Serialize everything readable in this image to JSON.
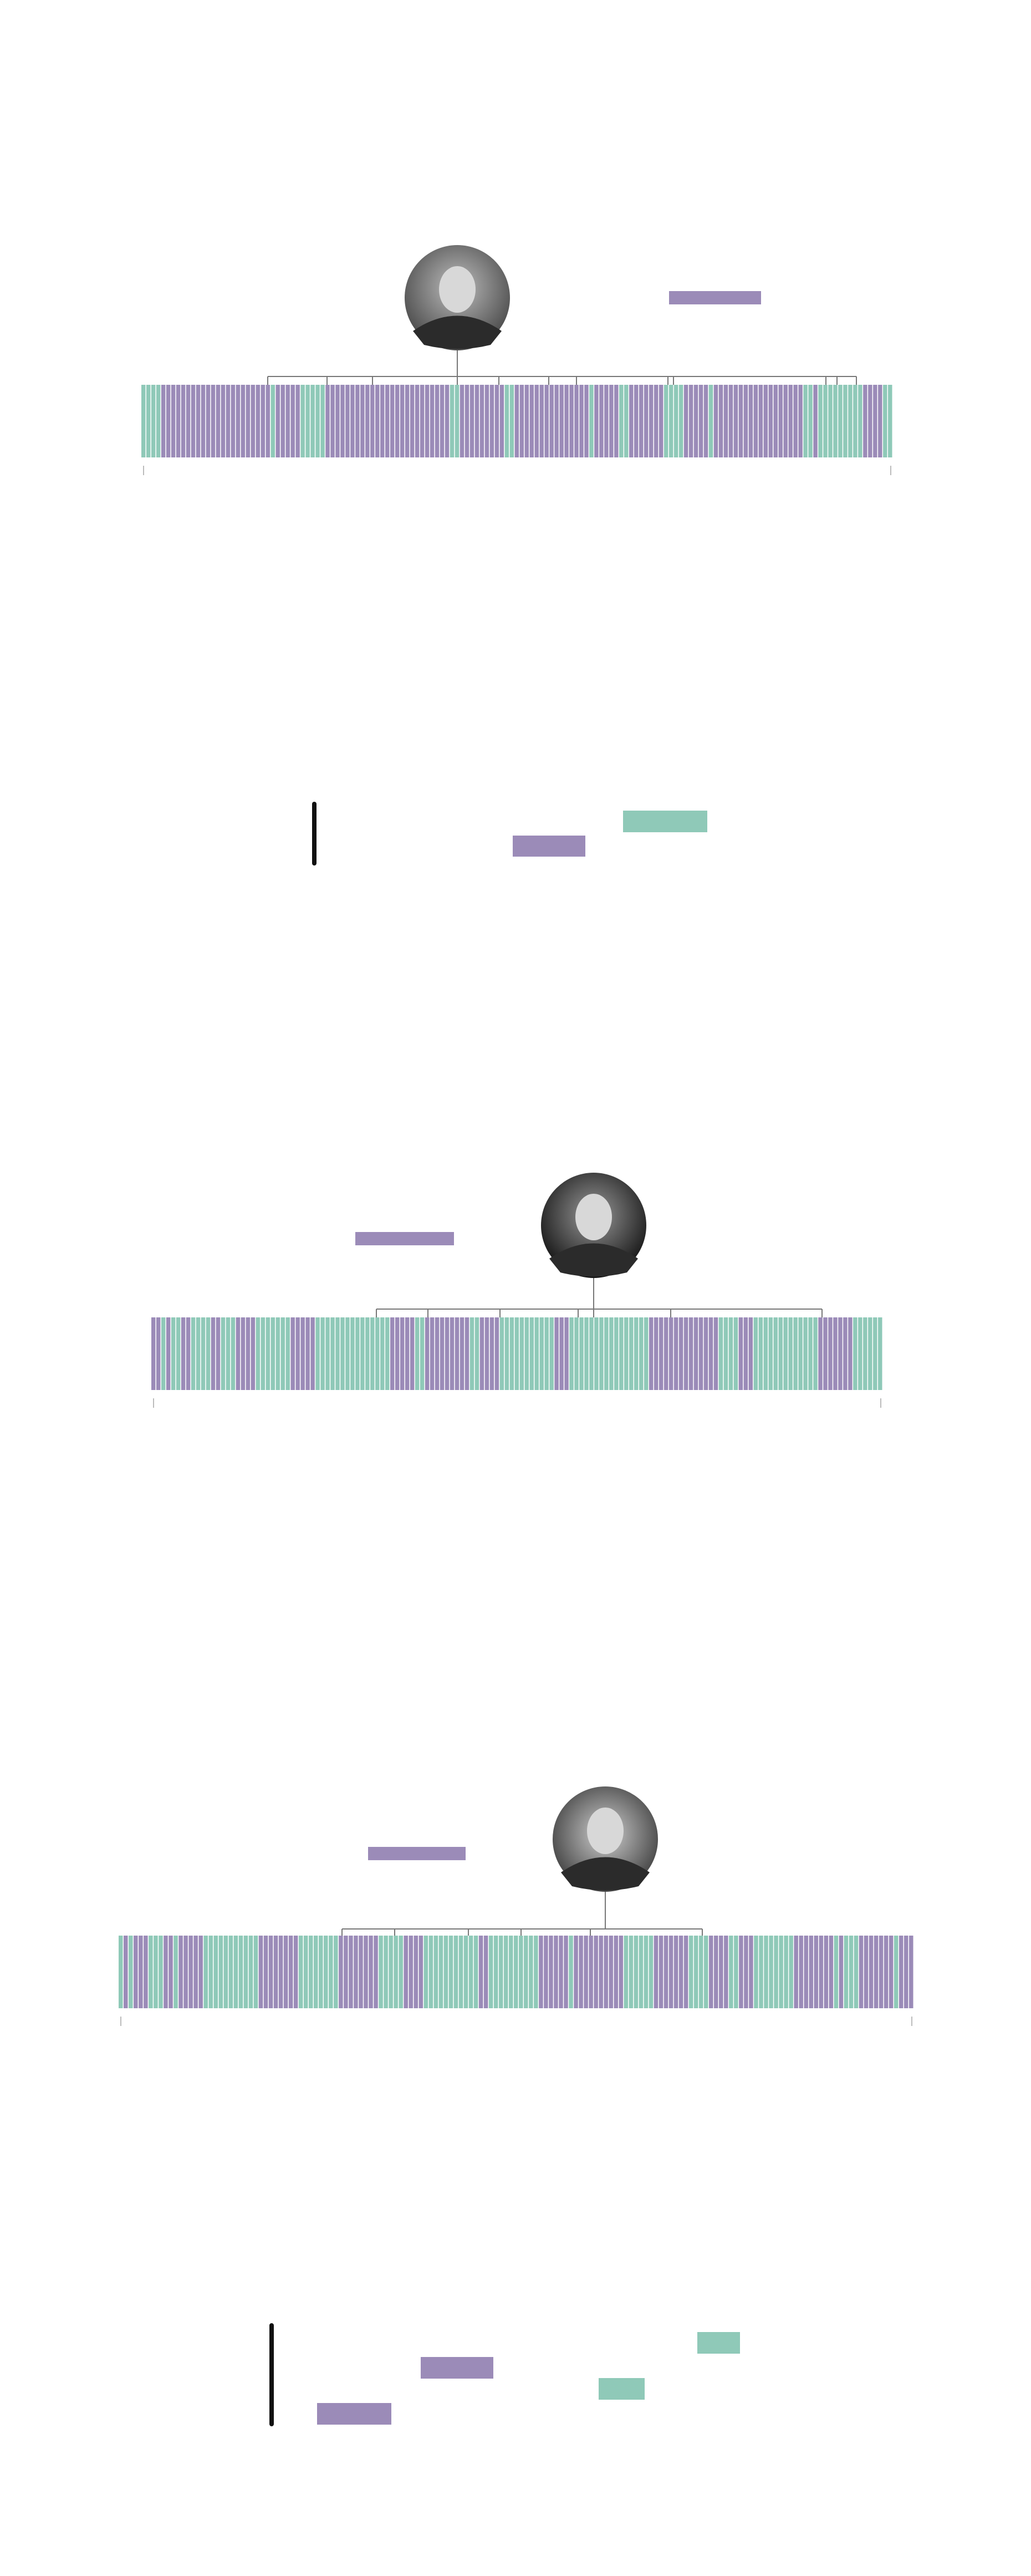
{
  "palette": {
    "purple": "#9b8bb8",
    "teal": "#8fc9b8",
    "ink": "#111111",
    "rule": "#777777"
  }
}
